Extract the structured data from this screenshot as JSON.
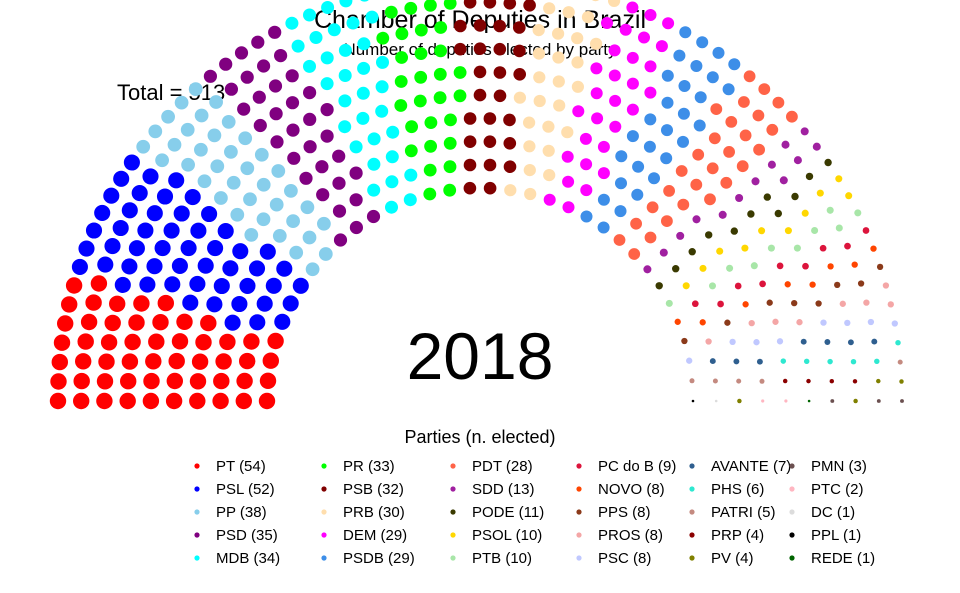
{
  "chart_data": {
    "type": "parliament",
    "title": "Chamber of Deputies in Brazil",
    "subtitle": "Number of deputies elected by party",
    "total_label": "Total = 513",
    "total": 513,
    "year_label": "2018",
    "legend_title": "Parties (n. elected)",
    "parties": [
      {
        "name": "PT",
        "label": "PT (54)",
        "seats": 54,
        "color": "#ff0000"
      },
      {
        "name": "PSL",
        "label": "PSL (52)",
        "seats": 52,
        "color": "#0000ff"
      },
      {
        "name": "PP",
        "label": "PP (38)",
        "seats": 38,
        "color": "#87ceeb"
      },
      {
        "name": "PSD",
        "label": "PSD (35)",
        "seats": 35,
        "color": "#800080"
      },
      {
        "name": "MDB",
        "label": "MDB (34)",
        "seats": 34,
        "color": "#00ffff"
      },
      {
        "name": "PR",
        "label": "PR (33)",
        "seats": 33,
        "color": "#00ff00"
      },
      {
        "name": "PSB",
        "label": "PSB (32)",
        "seats": 32,
        "color": "#800000"
      },
      {
        "name": "PRB",
        "label": "PRB (30)",
        "seats": 30,
        "color": "#ffdead"
      },
      {
        "name": "DEM",
        "label": "DEM (29)",
        "seats": 29,
        "color": "#ff00ff"
      },
      {
        "name": "PSDB",
        "label": "PSDB (29)",
        "seats": 29,
        "color": "#3d8ee8"
      },
      {
        "name": "PDT",
        "label": "PDT (28)",
        "seats": 28,
        "color": "#ff6347"
      },
      {
        "name": "SDD",
        "label": "SDD (13)",
        "seats": 13,
        "color": "#a020a0"
      },
      {
        "name": "PODE",
        "label": "PODE (11)",
        "seats": 11,
        "color": "#3a3a00"
      },
      {
        "name": "PSOL",
        "label": "PSOL (10)",
        "seats": 10,
        "color": "#ffd700"
      },
      {
        "name": "PTB",
        "label": "PTB (10)",
        "seats": 10,
        "color": "#a8e6a8"
      },
      {
        "name": "PC do B",
        "label": "PC do B (9)",
        "seats": 9,
        "color": "#dc143c"
      },
      {
        "name": "NOVO",
        "label": "NOVO (8)",
        "seats": 8,
        "color": "#ff4500"
      },
      {
        "name": "PPS",
        "label": "PPS (8)",
        "seats": 8,
        "color": "#8b3a1a"
      },
      {
        "name": "PROS",
        "label": "PROS (8)",
        "seats": 8,
        "color": "#f4a6a6"
      },
      {
        "name": "PSC",
        "label": "PSC (8)",
        "seats": 8,
        "color": "#c0c8ff"
      },
      {
        "name": "AVANTE",
        "label": "AVANTE (7)",
        "seats": 7,
        "color": "#2f5f8f"
      },
      {
        "name": "PHS",
        "label": "PHS (6)",
        "seats": 6,
        "color": "#2ee8d0"
      },
      {
        "name": "PATRI",
        "label": "PATRI (5)",
        "seats": 5,
        "color": "#c48a80"
      },
      {
        "name": "PRP",
        "label": "PRP (4)",
        "seats": 4,
        "color": "#8b0000"
      },
      {
        "name": "PV",
        "label": "PV (4)",
        "seats": 4,
        "color": "#808000"
      },
      {
        "name": "PMN",
        "label": "PMN (3)",
        "seats": 3,
        "color": "#6b5050"
      },
      {
        "name": "PTC",
        "label": "PTC (2)",
        "seats": 2,
        "color": "#ffb6c1"
      },
      {
        "name": "DC",
        "label": "DC (1)",
        "seats": 1,
        "color": "#dcdcdc"
      },
      {
        "name": "PPL",
        "label": "PPL (1)",
        "seats": 1,
        "color": "#000000"
      },
      {
        "name": "REDE",
        "label": "REDE (1)",
        "seats": 1,
        "color": "#006400"
      }
    ]
  }
}
